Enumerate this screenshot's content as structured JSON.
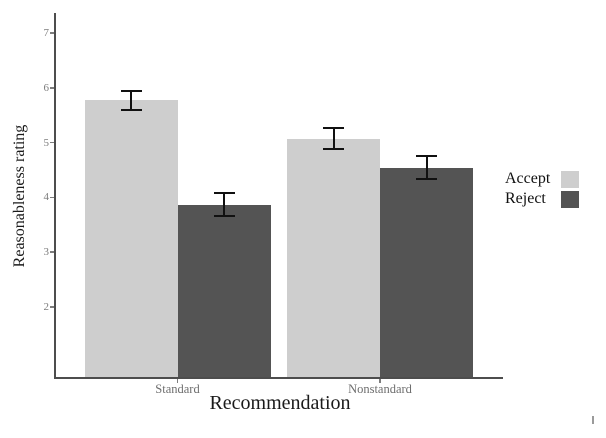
{
  "chart_data": {
    "type": "bar",
    "title": "",
    "xlabel": "Recommendation",
    "ylabel": "Reasonableness rating",
    "categories": [
      "Standard",
      "Nonstandard"
    ],
    "series": [
      {
        "name": "Accept",
        "values": [
          5.77,
          5.07
        ],
        "errors": [
          0.17,
          0.19
        ],
        "color": "#cecece"
      },
      {
        "name": "Reject",
        "values": [
          3.87,
          4.54
        ],
        "errors": [
          0.21,
          0.21
        ],
        "color": "#545454"
      }
    ],
    "error_bars": true,
    "yticks": [
      2,
      3,
      4,
      5,
      6,
      7
    ],
    "ylim": [
      0.7,
      7.35
    ],
    "grid": false,
    "legend_position": "right"
  },
  "colors": {
    "axis": "#4d4d4d",
    "tick_labels": "#7d7d7d",
    "category_labels": "#6e6e6e",
    "error_bar": "#111111",
    "background": "#ffffff"
  }
}
